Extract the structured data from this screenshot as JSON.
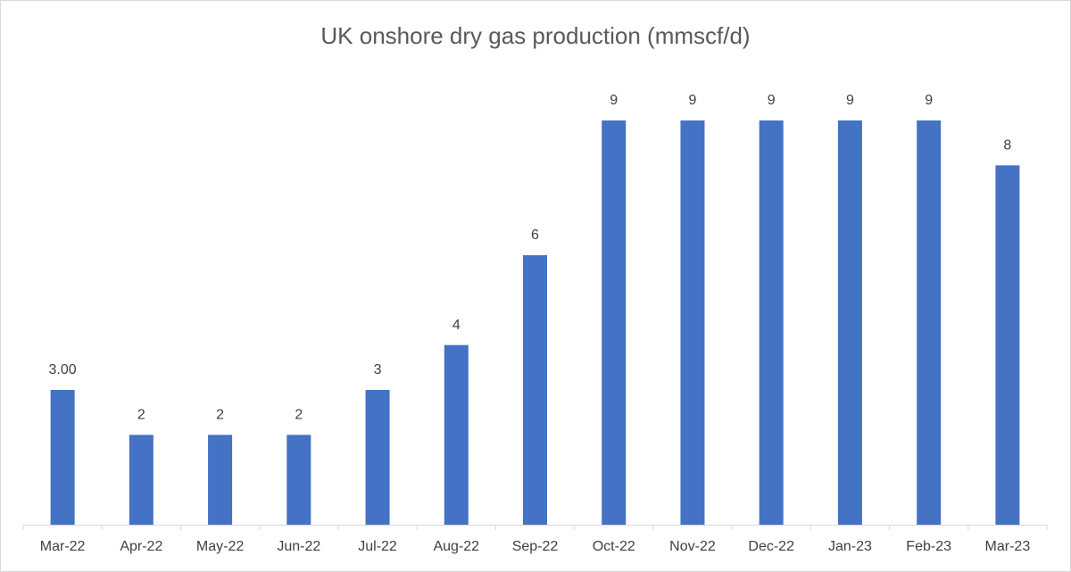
{
  "chart_data": {
    "type": "bar",
    "title": "UK onshore dry gas production (mmscf/d)",
    "categories": [
      "Mar-22",
      "Apr-22",
      "May-22",
      "Jun-22",
      "Jul-22",
      "Aug-22",
      "Sep-22",
      "Oct-22",
      "Nov-22",
      "Dec-22",
      "Jan-23",
      "Feb-23",
      "Mar-23"
    ],
    "values": [
      3,
      2,
      2,
      2,
      3,
      4,
      6,
      9,
      9,
      9,
      9,
      9,
      8
    ],
    "value_labels": [
      "3.00",
      "2",
      "2",
      "2",
      "3",
      "4",
      "6",
      "9",
      "9",
      "9",
      "9",
      "9",
      "8"
    ],
    "color": "#4472c4"
  }
}
